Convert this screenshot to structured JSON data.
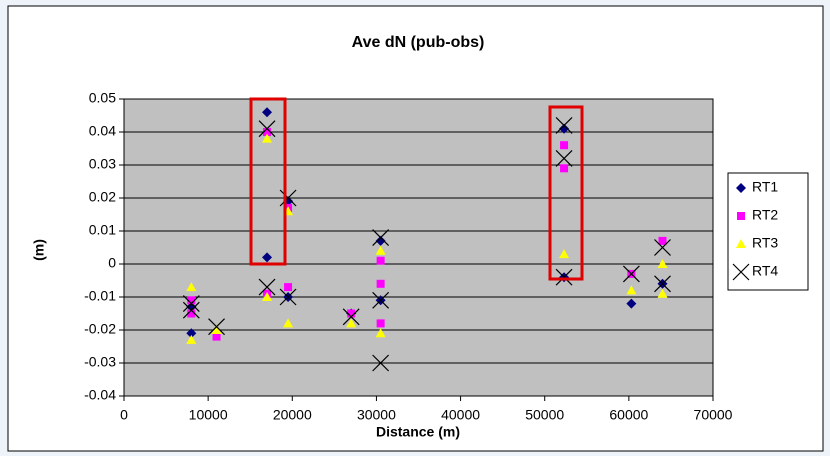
{
  "chart_data": {
    "type": "scatter",
    "title": "Ave dN (pub-obs)",
    "x_label": "Distance (m)",
    "y_label": "(m)",
    "xlim": [
      0,
      70000
    ],
    "xticks": [
      0,
      10000,
      20000,
      30000,
      40000,
      50000,
      60000,
      70000
    ],
    "ylim": [
      -0.04,
      0.05
    ],
    "yticks": [
      -0.04,
      -0.03,
      -0.02,
      -0.01,
      0,
      0.01,
      0.02,
      0.03,
      0.04,
      0.05
    ],
    "grid": true,
    "legend": "right",
    "series": [
      {
        "name": "RT1",
        "color": "#000080",
        "marker": "diamond",
        "x": [
          8000,
          8000,
          17000,
          17000,
          19500,
          19500,
          27000,
          30500,
          30500,
          52300,
          52300,
          60300,
          64000
        ],
        "values": [
          -0.021,
          -0.013,
          0.046,
          0.002,
          0.019,
          -0.01,
          -0.015,
          0.007,
          -0.011,
          0.041,
          -0.004,
          -0.012,
          -0.006
        ]
      },
      {
        "name": "RT2",
        "color": "#ff00ff",
        "marker": "square",
        "x": [
          8000,
          8000,
          11000,
          17000,
          17000,
          19500,
          19500,
          27000,
          30500,
          30500,
          30500,
          52300,
          52300,
          60300,
          64000
        ],
        "values": [
          -0.015,
          -0.011,
          -0.022,
          0.04,
          -0.009,
          0.017,
          -0.007,
          -0.015,
          0.001,
          -0.006,
          -0.018,
          0.036,
          0.029,
          -0.003,
          0.007
        ]
      },
      {
        "name": "RT3",
        "color": "#ffff00",
        "marker": "triangle",
        "x": [
          8000,
          8000,
          11000,
          17000,
          17000,
          19500,
          19500,
          27000,
          30500,
          30500,
          52300,
          60300,
          64000,
          64000
        ],
        "values": [
          -0.023,
          -0.007,
          -0.02,
          0.038,
          -0.01,
          0.016,
          -0.018,
          -0.018,
          0.004,
          -0.021,
          0.003,
          -0.008,
          -0.009,
          0.0
        ]
      },
      {
        "name": "RT4",
        "color": "#000000",
        "marker": "x",
        "x": [
          8000,
          8000,
          11000,
          17000,
          17000,
          19500,
          19500,
          27000,
          30500,
          30500,
          30500,
          52300,
          52300,
          52300,
          60300,
          64000,
          64000
        ],
        "values": [
          -0.012,
          -0.014,
          -0.019,
          0.041,
          -0.007,
          0.02,
          -0.01,
          -0.016,
          0.008,
          -0.011,
          -0.03,
          0.042,
          0.032,
          -0.004,
          -0.003,
          0.005,
          -0.006
        ]
      }
    ]
  }
}
